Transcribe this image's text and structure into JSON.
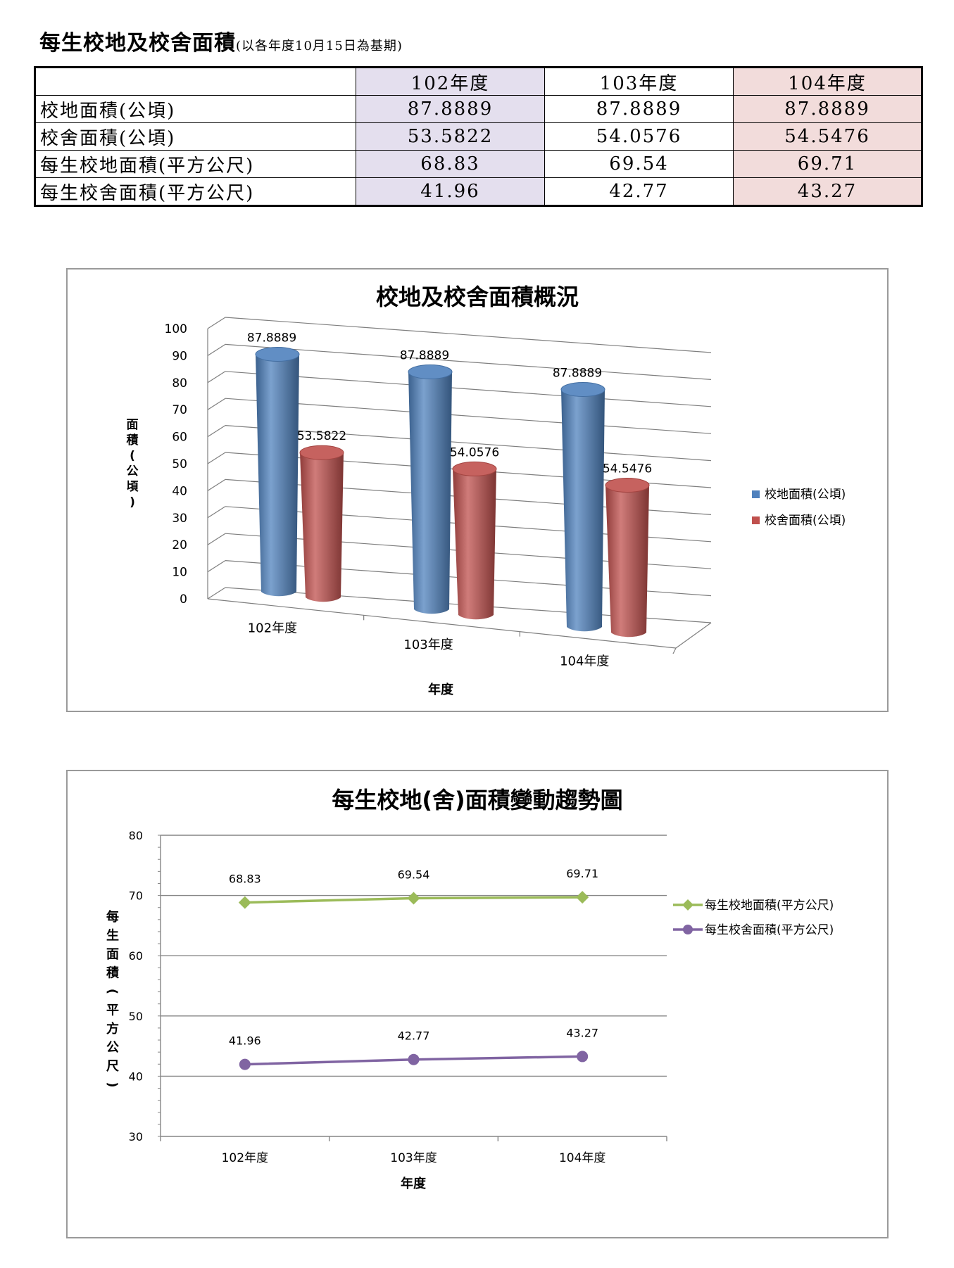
{
  "title": {
    "main": "每生校地及校舍面積",
    "sub": "(以各年度10月15日為基期)"
  },
  "table": {
    "headers": [
      "",
      "102年度",
      "103年度",
      "104年度"
    ],
    "rows": [
      {
        "label": "校地面積(公頃)",
        "values": [
          "87.8889",
          "87.8889",
          "87.8889"
        ]
      },
      {
        "label": "校舍面積(公頃)",
        "values": [
          "53.5822",
          "54.0576",
          "54.5476"
        ]
      },
      {
        "label": "每生校地面積(平方公尺)",
        "values": [
          "68.83",
          "69.54",
          "69.71"
        ]
      },
      {
        "label": "每生校舍面積(平方公尺)",
        "values": [
          "41.96",
          "42.77",
          "43.27"
        ]
      }
    ],
    "column_colors": [
      "#e4dfee",
      "#ffffff",
      "#f2dcdb"
    ]
  },
  "chart_data": [
    {
      "type": "bar",
      "title": "校地及校舍面積概況",
      "xlabel": "年度",
      "ylabel": "面積(公頃)",
      "categories": [
        "102年度",
        "103年度",
        "104年度"
      ],
      "ylim": [
        0,
        100
      ],
      "yticks": [
        0,
        10,
        20,
        30,
        40,
        50,
        60,
        70,
        80,
        90,
        100
      ],
      "series": [
        {
          "name": "校地面積(公頃)",
          "values": [
            87.8889,
            87.8889,
            87.8889
          ],
          "labels": [
            "87.8889",
            "87.8889",
            "87.8889"
          ],
          "color": "#4f81bd"
        },
        {
          "name": "校舍面積(公頃)",
          "values": [
            53.5822,
            54.0576,
            54.5476
          ],
          "labels": [
            "53.5822",
            "54.0576",
            "54.5476"
          ],
          "color": "#c0504d"
        }
      ],
      "style": "3d-cylinder",
      "grid": true,
      "legend": "right"
    },
    {
      "type": "line",
      "title": "每生校地(舍)面積變動趨勢圖",
      "xlabel": "年度",
      "ylabel": "每生面積(平方公尺)",
      "categories": [
        "102年度",
        "103年度",
        "104年度"
      ],
      "ylim": [
        30,
        80
      ],
      "yticks": [
        30,
        40,
        50,
        60,
        70,
        80
      ],
      "series": [
        {
          "name": "每生校地面積(平方公尺)",
          "values": [
            68.83,
            69.54,
            69.71
          ],
          "labels": [
            "68.83",
            "69.54",
            "69.71"
          ],
          "color": "#9bbb59",
          "marker": "diamond"
        },
        {
          "name": "每生校舍面積(平方公尺)",
          "values": [
            41.96,
            42.77,
            43.27
          ],
          "labels": [
            "41.96",
            "42.77",
            "43.27"
          ],
          "color": "#8064a2",
          "marker": "circle"
        }
      ],
      "grid": true,
      "legend": "right"
    }
  ]
}
